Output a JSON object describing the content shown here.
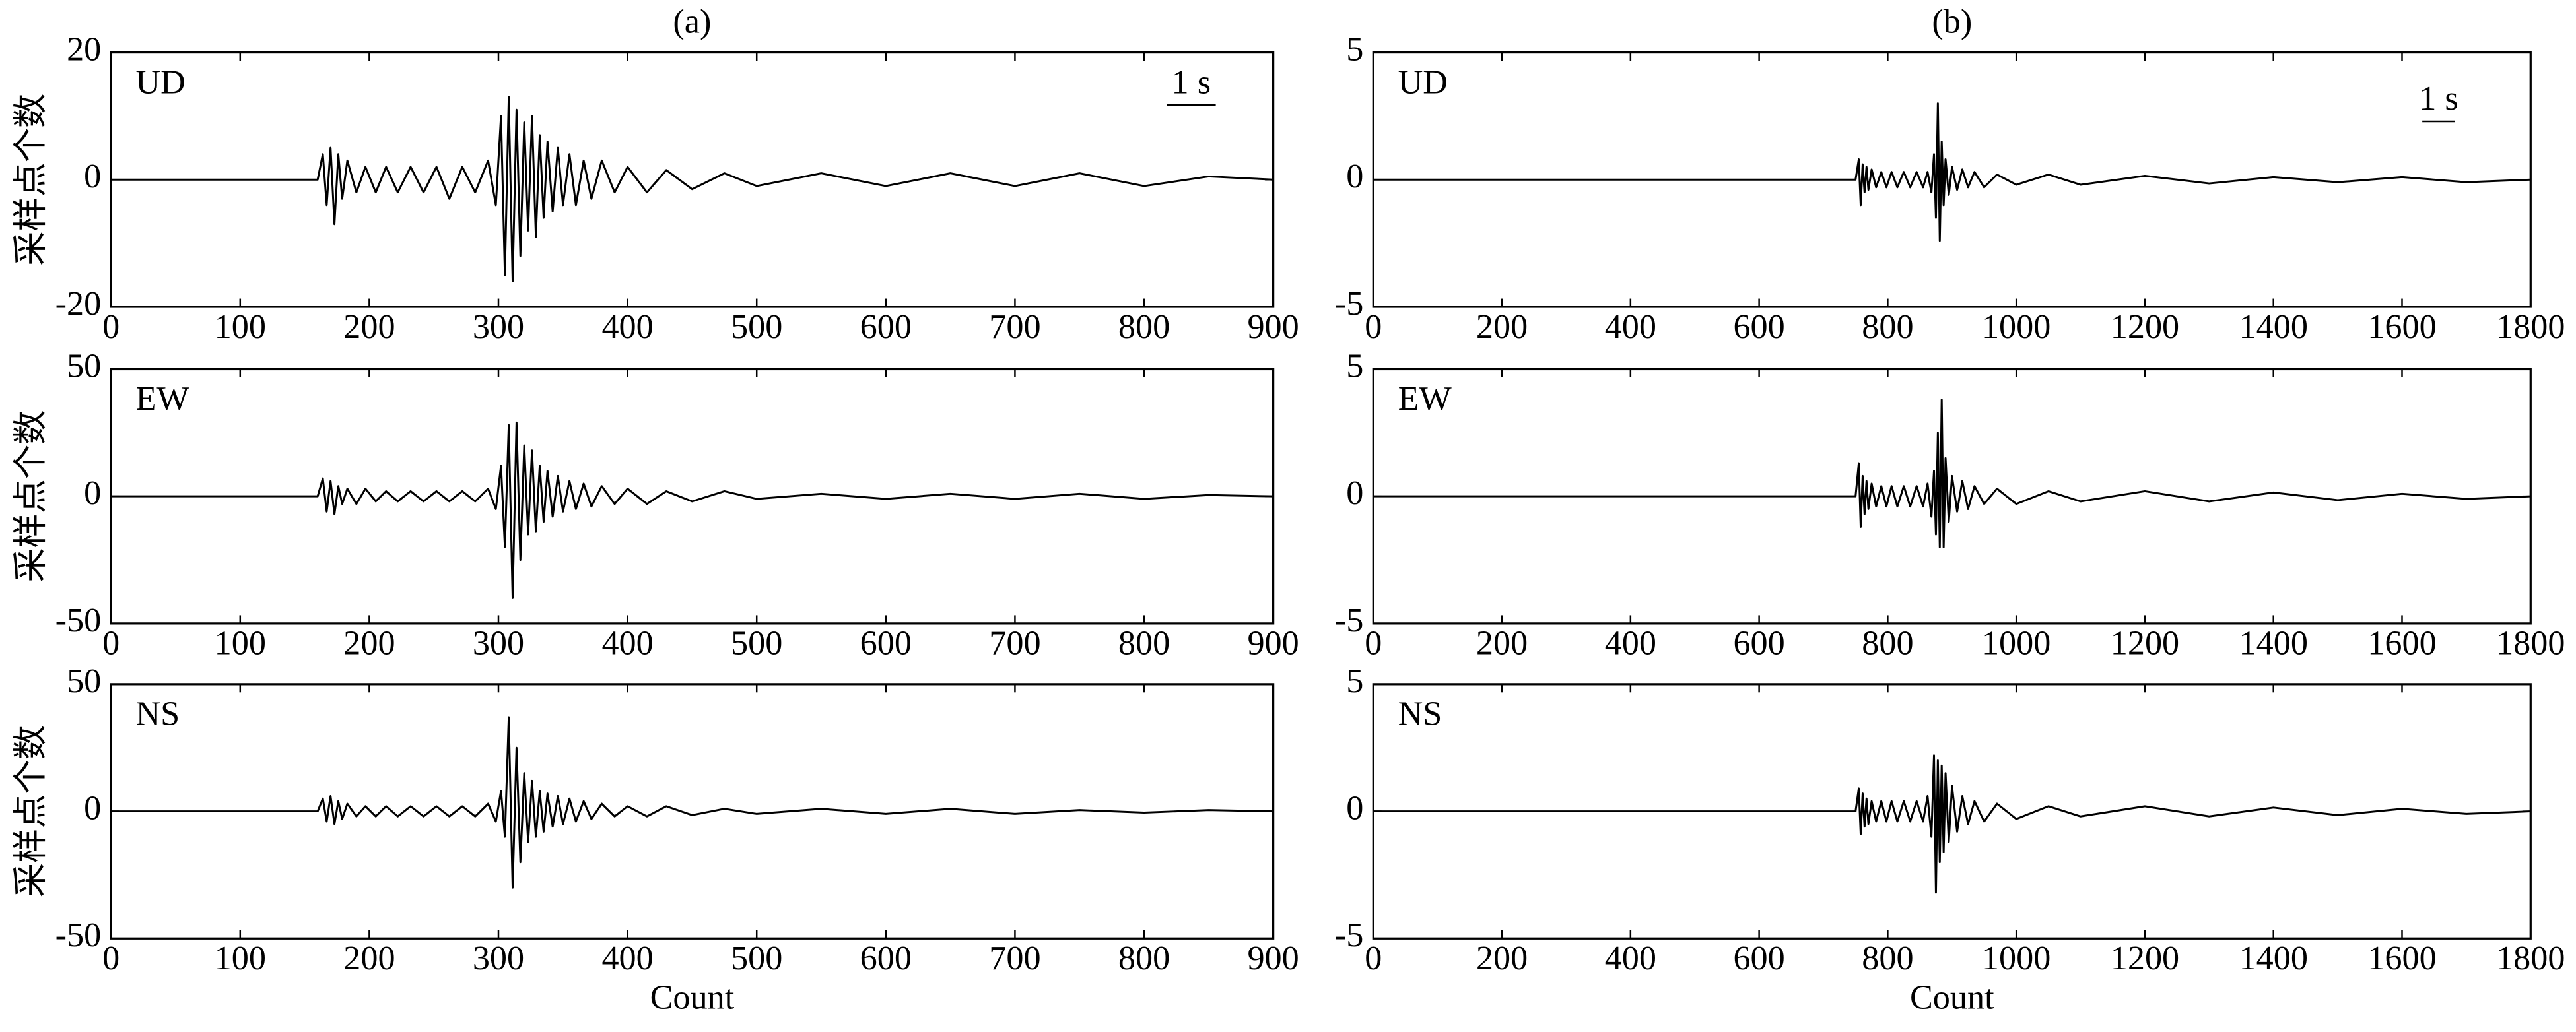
{
  "chart_data": [
    {
      "type": "line",
      "title": "(a)",
      "ylabel": "采样点个数",
      "annotation": "UD",
      "scale_bar": "1 s",
      "x": [
        0,
        160,
        164,
        167,
        170,
        173,
        176,
        179,
        183,
        190,
        197,
        205,
        213,
        222,
        232,
        242,
        252,
        262,
        272,
        282,
        292,
        298,
        302,
        305,
        308,
        311,
        314,
        317,
        320,
        323,
        326,
        329,
        332,
        335,
        338,
        342,
        346,
        350,
        355,
        360,
        366,
        372,
        380,
        390,
        400,
        415,
        430,
        450,
        475,
        500,
        550,
        600,
        650,
        700,
        750,
        800,
        850,
        900
      ],
      "series": [
        {
          "color": "#000000",
          "values": [
            0,
            0,
            4,
            -4,
            5,
            -7,
            4,
            -3,
            3,
            -2,
            2,
            -2,
            2,
            -2,
            2,
            -2,
            2,
            -3,
            2,
            -2,
            3,
            -4,
            10,
            -15,
            13,
            -16,
            11,
            -12,
            9,
            -8,
            10,
            -9,
            7,
            -6,
            6,
            -5,
            5,
            -4,
            4,
            -4,
            3,
            -3,
            3,
            -2,
            2,
            -2,
            1.5,
            -1.5,
            1,
            -1,
            1,
            -1,
            1,
            -1,
            1,
            -1,
            0.5,
            0
          ]
        }
      ],
      "xlim": [
        0,
        900
      ],
      "xticks": [
        0,
        100,
        200,
        300,
        400,
        500,
        600,
        700,
        800,
        900
      ],
      "ylim": [
        -20,
        20
      ],
      "yticks": [
        -20,
        0,
        20
      ]
    },
    {
      "type": "line",
      "title": "(b)",
      "annotation": "UD",
      "scale_bar": "1 s",
      "x": [
        0,
        750,
        755,
        758,
        761,
        764,
        767,
        770,
        775,
        782,
        790,
        798,
        806,
        815,
        825,
        835,
        845,
        855,
        862,
        868,
        872,
        875,
        878,
        881,
        884,
        887,
        890,
        895,
        900,
        908,
        916,
        925,
        935,
        950,
        970,
        1000,
        1050,
        1100,
        1200,
        1300,
        1400,
        1500,
        1600,
        1700,
        1800
      ],
      "series": [
        {
          "color": "#000000",
          "values": [
            0,
            0,
            0.8,
            -1,
            0.6,
            -0.5,
            0.5,
            -0.4,
            0.4,
            -0.3,
            0.3,
            -0.3,
            0.3,
            -0.3,
            0.3,
            -0.3,
            0.3,
            -0.3,
            0.3,
            -0.5,
            1,
            -1.5,
            3,
            -2.4,
            1.5,
            -1,
            0.8,
            -0.6,
            0.5,
            -0.4,
            0.4,
            -0.3,
            0.3,
            -0.3,
            0.2,
            -0.2,
            0.2,
            -0.2,
            0.15,
            -0.15,
            0.1,
            -0.1,
            0.1,
            -0.1,
            0
          ]
        }
      ],
      "xlim": [
        0,
        1800
      ],
      "xticks": [
        0,
        200,
        400,
        600,
        800,
        1000,
        1200,
        1400,
        1600,
        1800
      ],
      "ylim": [
        -5,
        5
      ],
      "yticks": [
        -5,
        0,
        5
      ]
    },
    {
      "type": "line",
      "ylabel": "采样点个数",
      "annotation": "EW",
      "x": [
        0,
        160,
        164,
        167,
        170,
        173,
        176,
        179,
        183,
        190,
        197,
        205,
        213,
        222,
        232,
        242,
        252,
        262,
        272,
        282,
        292,
        298,
        302,
        305,
        308,
        311,
        314,
        317,
        320,
        323,
        326,
        329,
        332,
        335,
        338,
        342,
        346,
        350,
        355,
        360,
        366,
        372,
        380,
        390,
        400,
        415,
        430,
        450,
        475,
        500,
        550,
        600,
        650,
        700,
        750,
        800,
        850,
        900
      ],
      "series": [
        {
          "color": "#000000",
          "values": [
            0,
            0,
            7,
            -6,
            6,
            -7,
            4,
            -3,
            3,
            -3,
            3,
            -2,
            2,
            -2,
            2,
            -2,
            2,
            -2,
            2,
            -2,
            3,
            -5,
            12,
            -20,
            28,
            -40,
            29,
            -25,
            20,
            -15,
            18,
            -14,
            12,
            -10,
            10,
            -8,
            8,
            -6,
            6,
            -5,
            5,
            -4,
            4,
            -3,
            3,
            -3,
            2,
            -2,
            2,
            -1,
            1,
            -1,
            1,
            -1,
            1,
            -1,
            0.5,
            0
          ]
        }
      ],
      "xlim": [
        0,
        900
      ],
      "xticks": [
        0,
        100,
        200,
        300,
        400,
        500,
        600,
        700,
        800,
        900
      ],
      "ylim": [
        -50,
        50
      ],
      "yticks": [
        -50,
        0,
        50
      ]
    },
    {
      "type": "line",
      "annotation": "EW",
      "x": [
        0,
        750,
        755,
        758,
        761,
        764,
        767,
        770,
        775,
        782,
        790,
        798,
        806,
        815,
        825,
        835,
        845,
        855,
        862,
        868,
        872,
        875,
        878,
        881,
        884,
        887,
        890,
        895,
        900,
        908,
        916,
        925,
        935,
        950,
        970,
        1000,
        1050,
        1100,
        1200,
        1300,
        1400,
        1500,
        1600,
        1700,
        1800
      ],
      "series": [
        {
          "color": "#000000",
          "values": [
            0,
            0,
            1.3,
            -1.2,
            0.8,
            -0.7,
            0.6,
            -0.5,
            0.5,
            -0.4,
            0.4,
            -0.4,
            0.4,
            -0.4,
            0.4,
            -0.4,
            0.4,
            -0.4,
            0.5,
            -0.8,
            1,
            -1.5,
            2.5,
            -2,
            3.8,
            -2,
            1.5,
            -1,
            0.8,
            -0.6,
            0.6,
            -0.5,
            0.4,
            -0.3,
            0.3,
            -0.3,
            0.2,
            -0.2,
            0.2,
            -0.2,
            0.15,
            -0.15,
            0.1,
            -0.1,
            0
          ]
        }
      ],
      "xlim": [
        0,
        1800
      ],
      "xticks": [
        0,
        200,
        400,
        600,
        800,
        1000,
        1200,
        1400,
        1600,
        1800
      ],
      "ylim": [
        -5,
        5
      ],
      "yticks": [
        -5,
        0,
        5
      ]
    },
    {
      "type": "line",
      "ylabel": "采样点个数",
      "xlabel": "Count",
      "annotation": "NS",
      "x": [
        0,
        160,
        164,
        167,
        170,
        173,
        176,
        179,
        183,
        190,
        197,
        205,
        213,
        222,
        232,
        242,
        252,
        262,
        272,
        282,
        292,
        298,
        302,
        305,
        308,
        311,
        314,
        317,
        320,
        323,
        326,
        329,
        332,
        335,
        338,
        342,
        346,
        350,
        355,
        360,
        366,
        372,
        380,
        390,
        400,
        415,
        430,
        450,
        475,
        500,
        550,
        600,
        650,
        700,
        750,
        800,
        850,
        900
      ],
      "series": [
        {
          "color": "#000000",
          "values": [
            0,
            0,
            5,
            -4,
            6,
            -5,
            4,
            -3,
            3,
            -2,
            2,
            -2,
            2,
            -2,
            2,
            -2,
            2,
            -2,
            2,
            -2,
            3,
            -4,
            8,
            -10,
            37,
            -30,
            25,
            -20,
            15,
            -12,
            12,
            -10,
            8,
            -8,
            7,
            -6,
            6,
            -5,
            5,
            -4,
            4,
            -3,
            3,
            -2,
            2,
            -2,
            2,
            -1.5,
            1,
            -1,
            1,
            -1,
            1,
            -1,
            0.5,
            -0.5,
            0.5,
            0
          ]
        }
      ],
      "xlim": [
        0,
        900
      ],
      "xticks": [
        0,
        100,
        200,
        300,
        400,
        500,
        600,
        700,
        800,
        900
      ],
      "ylim": [
        -50,
        50
      ],
      "yticks": [
        -50,
        0,
        50
      ]
    },
    {
      "type": "line",
      "xlabel": "Count",
      "annotation": "NS",
      "x": [
        0,
        750,
        755,
        758,
        761,
        764,
        767,
        770,
        775,
        782,
        790,
        798,
        806,
        815,
        825,
        835,
        845,
        855,
        862,
        868,
        872,
        875,
        878,
        881,
        884,
        887,
        890,
        895,
        900,
        908,
        916,
        925,
        935,
        950,
        970,
        1000,
        1050,
        1100,
        1200,
        1300,
        1400,
        1500,
        1600,
        1700,
        1800
      ],
      "series": [
        {
          "color": "#000000",
          "values": [
            0,
            0,
            0.9,
            -0.9,
            0.7,
            -0.6,
            0.5,
            -0.5,
            0.4,
            -0.4,
            0.4,
            -0.4,
            0.4,
            -0.4,
            0.4,
            -0.4,
            0.4,
            -0.4,
            0.6,
            -1,
            2.2,
            -3.2,
            2,
            -2,
            1.8,
            -1.6,
            1.5,
            -1.2,
            1,
            -0.8,
            0.6,
            -0.5,
            0.4,
            -0.4,
            0.3,
            -0.3,
            0.2,
            -0.2,
            0.2,
            -0.2,
            0.15,
            -0.15,
            0.1,
            -0.1,
            0
          ]
        }
      ],
      "xlim": [
        0,
        1800
      ],
      "xticks": [
        0,
        200,
        400,
        600,
        800,
        1000,
        1200,
        1400,
        1600,
        1800
      ],
      "ylim": [
        -5,
        5
      ],
      "yticks": [
        -5,
        0,
        5
      ]
    }
  ]
}
